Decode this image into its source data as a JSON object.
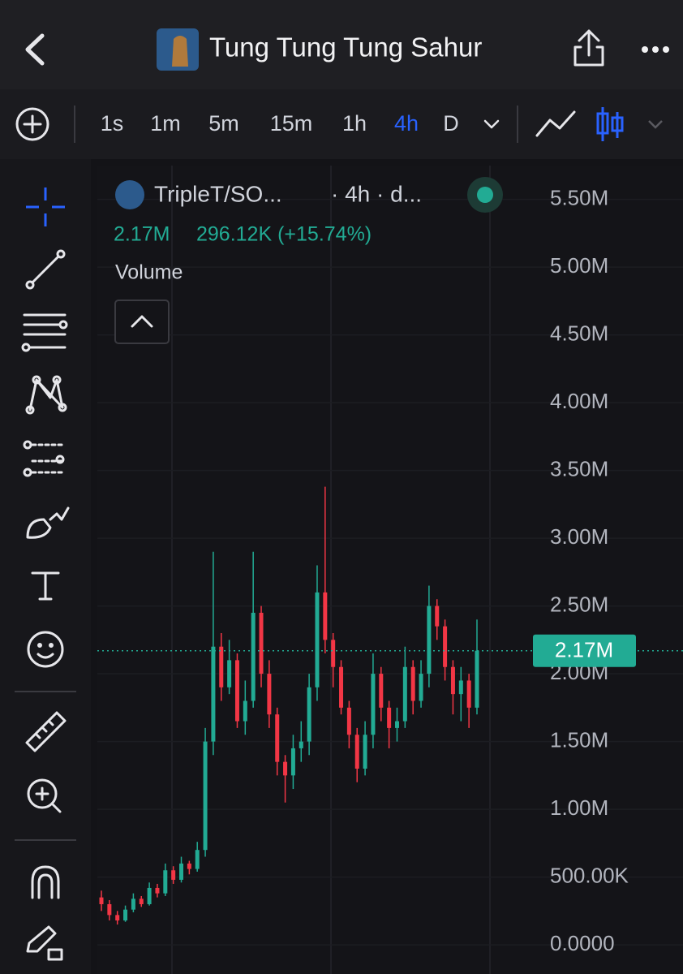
{
  "top_bar": {
    "title": "Tung Tung Tung Sahur"
  },
  "intervals": [
    "1s",
    "1m",
    "5m",
    "15m",
    "1h",
    "4h",
    "D"
  ],
  "selected_interval": "4h",
  "chart_data": {
    "type": "candlestick",
    "symbol": "TripleT/SO...",
    "interval_info": "· 4h · d...",
    "change": "296.12K (+15.74%)",
    "indicator": "Volume",
    "up_color": "#22ab94",
    "down_color": "#f23645",
    "last_price": {
      "value": 2170000,
      "label": "2.17M"
    },
    "ylim": [
      -215000,
      5773000
    ],
    "yticks": [
      {
        "value": 0,
        "label": "0.0000"
      },
      {
        "value": 500000,
        "label": "500.00K"
      },
      {
        "value": 1000000,
        "label": "1.00M"
      },
      {
        "value": 1500000,
        "label": "1.50M"
      },
      {
        "value": 2000000,
        "label": "2.00M"
      },
      {
        "value": 2500000,
        "label": "2.50M"
      },
      {
        "value": 3000000,
        "label": "3.00M"
      },
      {
        "value": 3500000,
        "label": "3.50M"
      },
      {
        "value": 4000000,
        "label": "4.00M"
      },
      {
        "value": 4500000,
        "label": "4.50M"
      },
      {
        "value": 5000000,
        "label": "5.00M"
      },
      {
        "value": 5500000,
        "label": "5.50M"
      }
    ],
    "open": [
      350000,
      300000,
      220000,
      180000,
      260000,
      340000,
      300000,
      420000,
      380000,
      550000,
      480000,
      600000,
      560000,
      700000,
      1500000,
      2200000,
      1900000,
      2100000,
      1650000,
      1800000,
      2450000,
      2000000,
      1700000,
      1350000,
      1250000,
      1450000,
      1500000,
      1900000,
      2600000,
      2250000,
      2050000,
      1750000,
      1550000,
      1300000,
      1550000,
      2000000,
      1750000,
      1600000,
      1650000,
      2050000,
      1800000,
      2000000,
      2500000,
      2350000,
      2050000,
      1850000,
      1950000,
      1750000
    ],
    "high": [
      400000,
      330000,
      250000,
      290000,
      380000,
      360000,
      460000,
      450000,
      600000,
      580000,
      650000,
      620000,
      760000,
      1600000,
      2900000,
      2300000,
      2250000,
      2150000,
      1950000,
      2900000,
      2500000,
      2100000,
      1750000,
      1400000,
      1550000,
      1650000,
      2000000,
      2800000,
      3380000,
      2300000,
      2100000,
      1800000,
      1600000,
      1650000,
      2150000,
      2050000,
      1800000,
      1750000,
      2200000,
      2100000,
      2100000,
      2650000,
      2550000,
      2400000,
      2100000,
      2050000,
      2000000,
      2400000
    ],
    "low": [
      250000,
      180000,
      150000,
      170000,
      240000,
      280000,
      290000,
      350000,
      360000,
      450000,
      460000,
      520000,
      540000,
      650000,
      1400000,
      1800000,
      1850000,
      1600000,
      1550000,
      1750000,
      1900000,
      1600000,
      1250000,
      1050000,
      1150000,
      1350000,
      1400000,
      1800000,
      2150000,
      1900000,
      1700000,
      1450000,
      1200000,
      1250000,
      1450000,
      1650000,
      1450000,
      1500000,
      1600000,
      1700000,
      1750000,
      1900000,
      2250000,
      1950000,
      1700000,
      1650000,
      1600000,
      1700000
    ],
    "close": [
      300000,
      220000,
      180000,
      260000,
      340000,
      300000,
      420000,
      380000,
      550000,
      480000,
      600000,
      560000,
      700000,
      1500000,
      2200000,
      1900000,
      2100000,
      1650000,
      1800000,
      2450000,
      2000000,
      1700000,
      1350000,
      1250000,
      1450000,
      1500000,
      1900000,
      2600000,
      2250000,
      2050000,
      1750000,
      1550000,
      1300000,
      1550000,
      2000000,
      1750000,
      1600000,
      1650000,
      2050000,
      1800000,
      2000000,
      2500000,
      2350000,
      2050000,
      1850000,
      1950000,
      1750000,
      2170000
    ]
  }
}
